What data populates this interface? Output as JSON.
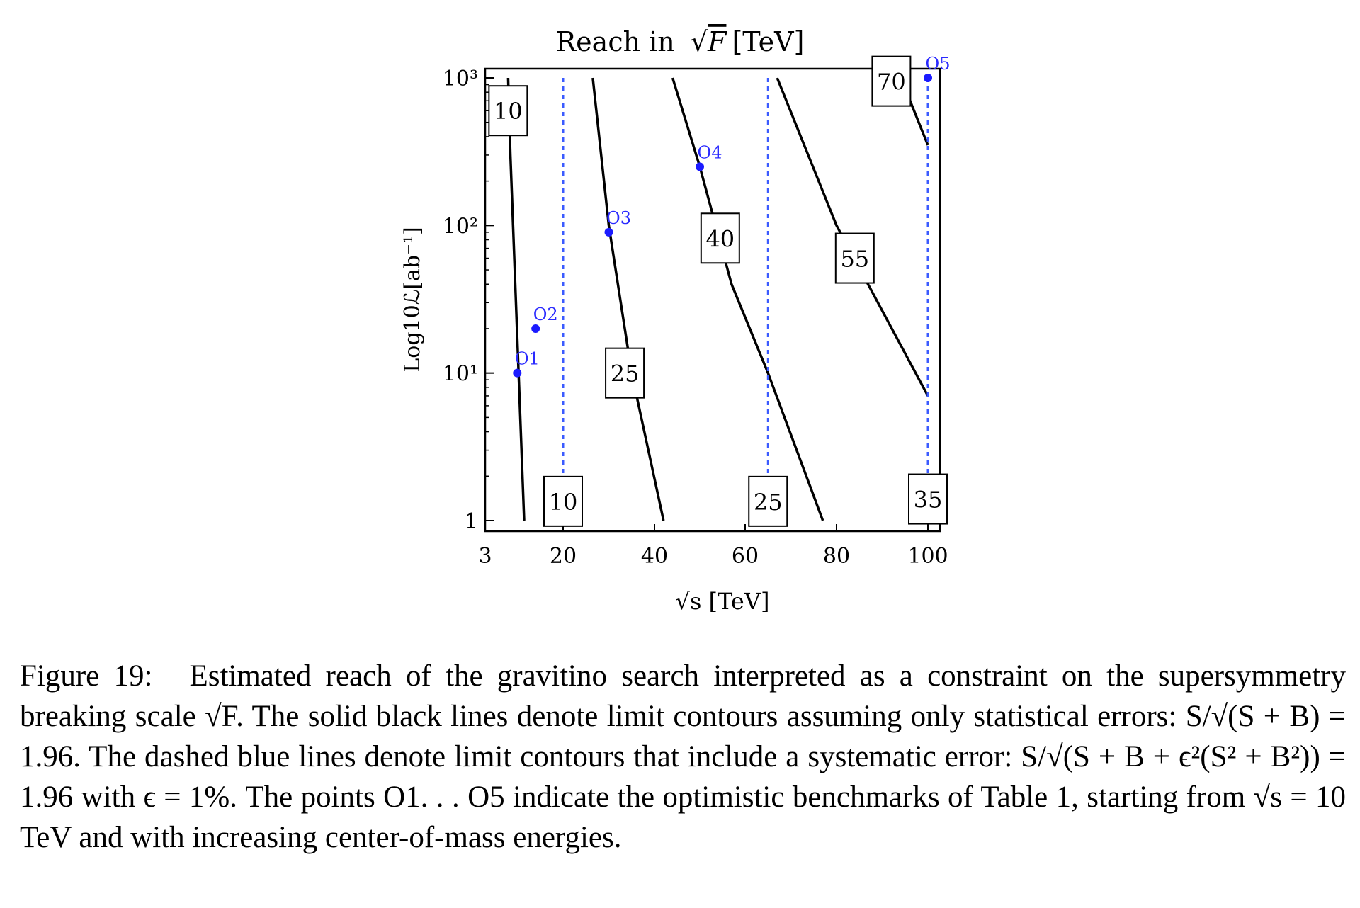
{
  "figure": {
    "title_prefix": "Reach in ",
    "title_var": "F",
    "title_unit": "[TeV]",
    "caption": {
      "label": "Figure 19:",
      "text": "Estimated reach of the gravitino search interpreted as a constraint on the supersymmetry breaking scale √F. The solid black lines denote limit contours assuming only statistical errors: S/√(S + B) = 1.96. The dashed blue lines denote limit contours that include a systematic error: S/√(S + B + ϵ²(S² + B²)) = 1.96 with ϵ = 1%. The points O1. . . O5 indicate the optimistic benchmarks of Table 1, starting from √s = 10 TeV and with increasing center-of-mass energies."
    }
  },
  "chart_data": {
    "type": "line",
    "title": "Reach in √F [TeV]",
    "xlabel": "√s [TeV]",
    "ylabel": "Log10ℒ[ab⁻¹]",
    "x_ticks": [
      "3",
      "20",
      "40",
      "60",
      "80",
      "100"
    ],
    "y_ticks": [
      "1",
      "10¹",
      "10²",
      "10³"
    ],
    "xlim": [
      3,
      100
    ],
    "ylim": [
      1,
      1000
    ],
    "yscale": "log",
    "series": [
      {
        "label": "10",
        "style": "solid",
        "color": "#000000",
        "points": [
          [
            8,
            1000
          ],
          [
            8.5,
            300
          ],
          [
            11.5,
            1
          ]
        ]
      },
      {
        "label": "25",
        "style": "solid",
        "color": "#000000",
        "points": [
          [
            26.5,
            1000
          ],
          [
            30,
            100
          ],
          [
            35,
            10
          ],
          [
            42,
            1
          ]
        ]
      },
      {
        "label": "40",
        "style": "solid",
        "color": "#000000",
        "points": [
          [
            44,
            1000
          ],
          [
            50,
            250
          ],
          [
            57,
            40
          ],
          [
            65,
            10
          ],
          [
            77,
            1
          ]
        ]
      },
      {
        "label": "55",
        "style": "solid",
        "color": "#000000",
        "points": [
          [
            67,
            1000
          ],
          [
            80,
            100
          ],
          [
            100,
            7
          ]
        ]
      },
      {
        "label": "70",
        "style": "solid",
        "color": "#000000",
        "points": [
          [
            95,
            850
          ],
          [
            100,
            350
          ]
        ]
      },
      {
        "label": "10",
        "style": "dashed",
        "color": "#3b5bff",
        "points": [
          [
            20,
            1000
          ],
          [
            20,
            1
          ]
        ]
      },
      {
        "label": "25",
        "style": "dashed",
        "color": "#3b5bff",
        "points": [
          [
            65,
            1000
          ],
          [
            65,
            1
          ]
        ]
      },
      {
        "label": "35",
        "style": "dashed",
        "color": "#3b5bff",
        "points": [
          [
            100,
            1000
          ],
          [
            100,
            1
          ]
        ]
      }
    ],
    "contour_labels": [
      {
        "text": "10",
        "x": 8,
        "y": 600
      },
      {
        "text": "10",
        "x": 20,
        "y": 1.35
      },
      {
        "text": "25",
        "x": 33.5,
        "y": 10
      },
      {
        "text": "25",
        "x": 65,
        "y": 1.35
      },
      {
        "text": "35",
        "x": 100,
        "y": 1.4
      },
      {
        "text": "40",
        "x": 54.5,
        "y": 82
      },
      {
        "text": "55",
        "x": 84,
        "y": 60
      },
      {
        "text": "70",
        "x": 92,
        "y": 950
      }
    ],
    "benchmarks": [
      {
        "name": "O1",
        "x": 10,
        "y": 10
      },
      {
        "name": "O2",
        "x": 14,
        "y": 20
      },
      {
        "name": "O3",
        "x": 30,
        "y": 90
      },
      {
        "name": "O4",
        "x": 50,
        "y": 250
      },
      {
        "name": "O5",
        "x": 100,
        "y": 1000
      }
    ]
  }
}
